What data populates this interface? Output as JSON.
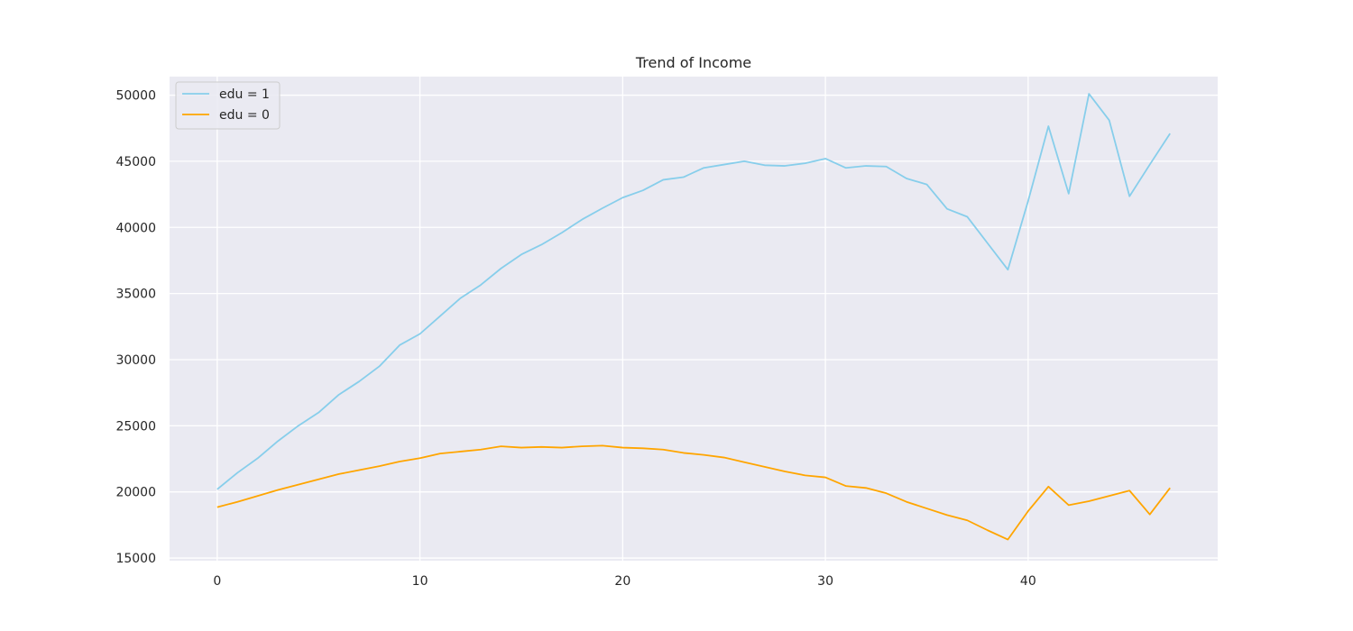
{
  "chart_data": {
    "type": "line",
    "title": "Trend of Income",
    "xlabel": "",
    "ylabel": "",
    "xlim": [
      -2.35,
      49.35
    ],
    "ylim": [
      14800,
      51400
    ],
    "x_ticks": [
      0,
      10,
      20,
      30,
      40
    ],
    "y_ticks": [
      15000,
      20000,
      25000,
      30000,
      35000,
      40000,
      45000,
      50000
    ],
    "grid": true,
    "legend_position": "top-left",
    "background_color": "#eaeaf2",
    "grid_color": "#ffffff",
    "series": [
      {
        "name": "edu = 1",
        "color": "#87ceeb",
        "x": [
          0,
          1,
          2,
          3,
          4,
          5,
          6,
          7,
          8,
          9,
          10,
          11,
          12,
          13,
          14,
          15,
          16,
          17,
          18,
          19,
          20,
          21,
          22,
          23,
          24,
          25,
          26,
          27,
          28,
          29,
          30,
          31,
          32,
          33,
          34,
          35,
          36,
          37,
          38,
          39,
          40,
          41,
          42,
          43,
          44,
          45,
          46,
          47
        ],
        "values": [
          20200,
          21450,
          22550,
          23850,
          25000,
          26000,
          27350,
          28350,
          29500,
          31100,
          31950,
          33300,
          34650,
          35650,
          36900,
          37950,
          38700,
          39600,
          40600,
          41450,
          42250,
          42800,
          43600,
          43800,
          44500,
          44750,
          45000,
          44700,
          44650,
          44850,
          45200,
          44500,
          44650,
          44600,
          43700,
          43250,
          41400,
          40800,
          38800,
          36800,
          42000,
          47650,
          42550,
          50100,
          48100,
          42350,
          44750,
          47100
        ]
      },
      {
        "name": "edu = 0",
        "color": "#ffa500",
        "x": [
          0,
          1,
          2,
          3,
          4,
          5,
          6,
          7,
          8,
          9,
          10,
          11,
          12,
          13,
          14,
          15,
          16,
          17,
          18,
          19,
          20,
          21,
          22,
          23,
          24,
          25,
          26,
          27,
          28,
          29,
          30,
          31,
          32,
          33,
          34,
          35,
          36,
          37,
          38,
          39,
          40,
          41,
          42,
          43,
          44,
          45,
          46,
          47
        ],
        "values": [
          18850,
          19250,
          19700,
          20150,
          20550,
          20950,
          21350,
          21650,
          21950,
          22300,
          22550,
          22900,
          23050,
          23200,
          23450,
          23350,
          23400,
          23350,
          23450,
          23500,
          23350,
          23300,
          23200,
          22950,
          22800,
          22600,
          22250,
          21900,
          21550,
          21250,
          21100,
          20450,
          20300,
          19900,
          19250,
          18750,
          18250,
          17850,
          17100,
          16400,
          18550,
          20400,
          19000,
          19300,
          19700,
          20100,
          18300,
          20300
        ]
      }
    ]
  }
}
